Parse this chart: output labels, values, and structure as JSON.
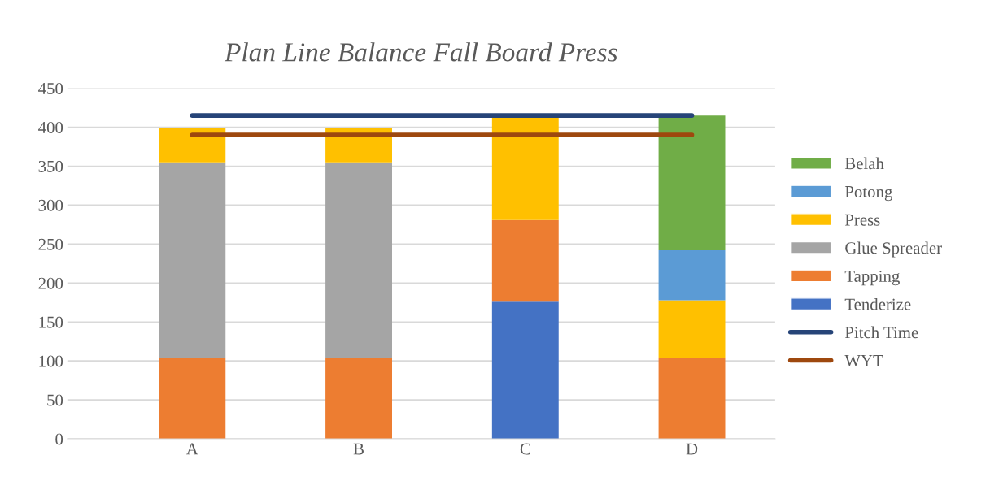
{
  "chart_data": {
    "type": "bar",
    "title": "Plan Line Balance Fall Board Press",
    "categories": [
      "A",
      "B",
      "C",
      "D"
    ],
    "stacked": true,
    "series": [
      {
        "name": "Tenderize",
        "color": "#4472c4",
        "values": [
          0,
          0,
          176,
          0
        ]
      },
      {
        "name": "Tapping",
        "color": "#ed7d31",
        "values": [
          104,
          104,
          105,
          104
        ]
      },
      {
        "name": "Glue Spreader",
        "color": "#a5a5a5",
        "values": [
          251,
          251,
          0,
          0
        ]
      },
      {
        "name": "Press",
        "color": "#ffc000",
        "values": [
          44,
          44,
          131,
          74
        ]
      },
      {
        "name": "Potong",
        "color": "#5b9bd5",
        "values": [
          0,
          0,
          0,
          64
        ]
      },
      {
        "name": "Belah",
        "color": "#70ad47",
        "values": [
          0,
          0,
          0,
          173
        ]
      },
      {
        "name": "Pitch Time",
        "color": "#264478",
        "type": "line",
        "values": [
          415,
          415,
          415,
          415
        ]
      },
      {
        "name": "WYT",
        "color": "#9e480e",
        "type": "line",
        "values": [
          390,
          390,
          390,
          390
        ]
      }
    ],
    "ylim": [
      0,
      450
    ],
    "yticks": [
      0,
      50,
      100,
      150,
      200,
      250,
      300,
      350,
      400,
      450
    ],
    "grid": "y",
    "legend": "right"
  }
}
